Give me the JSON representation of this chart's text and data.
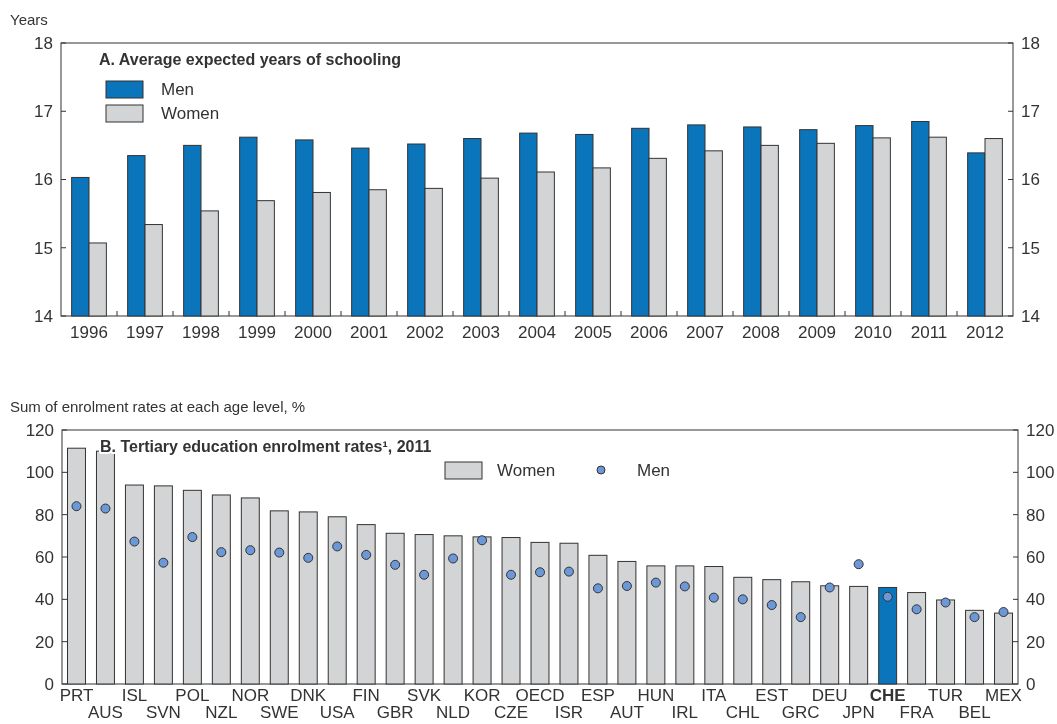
{
  "chart_data": [
    {
      "type": "bar",
      "title": "A. Average expected years of schooling",
      "ylabel": "Years",
      "categories": [
        "1996",
        "1997",
        "1998",
        "1999",
        "2000",
        "2001",
        "2002",
        "2003",
        "2004",
        "2005",
        "2006",
        "2007",
        "2008",
        "2009",
        "2010",
        "2011",
        "2012"
      ],
      "series": [
        {
          "name": "Men",
          "color": "#0a75bb",
          "values": [
            16.03,
            16.35,
            16.5,
            16.62,
            16.58,
            16.46,
            16.52,
            16.6,
            16.68,
            16.66,
            16.75,
            16.8,
            16.77,
            16.73,
            16.79,
            16.85,
            16.39
          ]
        },
        {
          "name": "Women",
          "color": "#d3d4d6",
          "values": [
            15.07,
            15.34,
            15.54,
            15.69,
            15.81,
            15.85,
            15.87,
            16.02,
            16.11,
            16.17,
            16.31,
            16.42,
            16.5,
            16.53,
            16.61,
            16.62,
            16.6
          ]
        }
      ],
      "ylim": [
        14,
        18
      ],
      "yticks": [
        14,
        15,
        16,
        17,
        18
      ],
      "y2lim": [
        14,
        18
      ],
      "y2ticks": [
        14,
        15,
        16,
        17,
        18
      ],
      "legend": "top left",
      "grid": false
    },
    {
      "type": "bar",
      "title": "B. Tertiary education enrolment rates¹, 2011",
      "ylabel": "Sum of enrolment rates at each age level, %",
      "categories": [
        "PRT",
        "AUS",
        "ISL",
        "SVN",
        "POL",
        "NZL",
        "NOR",
        "SWE",
        "DNK",
        "USA",
        "FIN",
        "GBR",
        "SVK",
        "NLD",
        "KOR",
        "CZE",
        "OECD",
        "ISR",
        "ESP",
        "AUT",
        "HUN",
        "IRL",
        "ITA",
        "CHL",
        "EST",
        "GRC",
        "DEU",
        "JPN",
        "CHE",
        "FRA",
        "TUR",
        "BEL",
        "MEX"
      ],
      "series": [
        {
          "name": "Women",
          "color": "#d3d4d6",
          "colors": [
            "#d3d4d6",
            "#d3d4d6",
            "#d3d4d6",
            "#d3d4d6",
            "#d3d4d6",
            "#d3d4d6",
            "#d3d4d6",
            "#d3d4d6",
            "#d3d4d6",
            "#d3d4d6",
            "#d3d4d6",
            "#d3d4d6",
            "#d3d4d6",
            "#d3d4d6",
            "#d3d4d6",
            "#d3d4d6",
            "#d3d4d6",
            "#d3d4d6",
            "#d3d4d6",
            "#d3d4d6",
            "#d3d4d6",
            "#d3d4d6",
            "#d3d4d6",
            "#d3d4d6",
            "#d3d4d6",
            "#d3d4d6",
            "#d3d4d6",
            "#d3d4d6",
            "#0a75bb",
            "#d3d4d6",
            "#d3d4d6",
            "#d3d4d6",
            "#d3d4d6"
          ],
          "values": [
            111.4,
            110,
            94,
            93.6,
            91.5,
            89.3,
            87.9,
            81.8,
            81.3,
            79,
            75.3,
            71.2,
            70.6,
            70,
            69.5,
            69.2,
            66.9,
            66.5,
            60.8,
            57.9,
            55.8,
            55.8,
            55.5,
            50.4,
            49.3,
            48.3,
            46.4,
            46.1,
            45.6,
            43.2,
            39.7,
            34.8,
            33.5
          ]
        },
        {
          "name": "Men",
          "type": "scatter",
          "color": "#6c98d8",
          "marker": "circle",
          "x": [
            "PRT",
            "AUS",
            "ISL",
            "SVN",
            "POL",
            "NZL",
            "NOR",
            "SWE",
            "DNK",
            "USA",
            "FIN",
            "GBR",
            "SVK",
            "NLD",
            "KOR",
            "CZE",
            "OECD",
            "ISR",
            "ESP",
            "AUT",
            "HUN",
            "IRL",
            "ITA",
            "CHL",
            "EST",
            "GRC",
            "DEU",
            "JPN",
            "CHE",
            "FRA",
            "TUR",
            "BEL",
            "MEX"
          ],
          "values": [
            84,
            82.9,
            67.3,
            57.3,
            69.4,
            62.3,
            63.2,
            62.1,
            59.6,
            65,
            61,
            56.3,
            51.6,
            59.3,
            67.9,
            51.6,
            52.8,
            53.1,
            45.2,
            46.3,
            47.9,
            46.1,
            40.8,
            40,
            37.3,
            31.6,
            45.6,
            56.6,
            41.2,
            35.3,
            38.5,
            31.6,
            34
          ]
        }
      ],
      "ylim": [
        0,
        120
      ],
      "yticks": [
        0,
        20,
        40,
        60,
        80,
        100,
        120
      ],
      "y2lim": [
        0,
        120
      ],
      "y2ticks": [
        0,
        20,
        40,
        60,
        80,
        100,
        120
      ],
      "legend": "top",
      "grid": false
    }
  ]
}
